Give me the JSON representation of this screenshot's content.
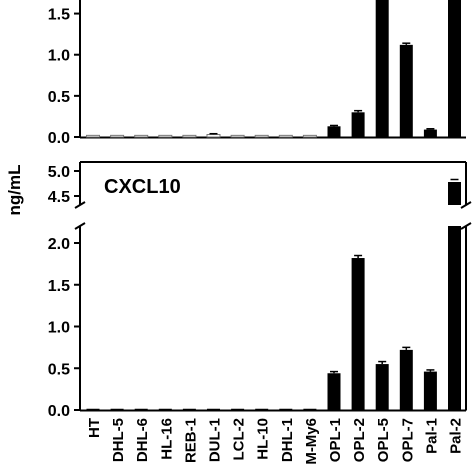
{
  "chart_data": [
    {
      "type": "bar",
      "ylabel": "ng/mL",
      "title": "",
      "categories": [
        "HT",
        "DHL-5",
        "DHL-6",
        "HL-16",
        "REB-1",
        "DUL-1",
        "LCL-2",
        "HL-10",
        "DHL-1",
        "M-My6",
        "OPL-1",
        "OPL-2",
        "OPL-5",
        "OPL-7",
        "Pal-1",
        "Pal-2"
      ],
      "values": [
        0.02,
        0.02,
        0.02,
        0.02,
        0.02,
        0.03,
        0.02,
        0.02,
        0.02,
        0.02,
        0.13,
        0.3,
        1.75,
        1.12,
        0.09,
        1.75
      ],
      "errors": [
        0.005,
        0.005,
        0.005,
        0.005,
        0.005,
        0.01,
        0.005,
        0.005,
        0.005,
        0.005,
        0.01,
        0.02,
        0.05,
        0.02,
        0.01,
        0.05
      ],
      "ylim": [
        0.0,
        1.75
      ],
      "yticks": [
        "0.0",
        "0.5",
        "1.0",
        "1.5"
      ],
      "hollow_bars": [
        "HT",
        "DHL-5",
        "DHL-6",
        "HL-16",
        "REB-1",
        "DUL-1",
        "LCL-2",
        "HL-10",
        "DHL-1",
        "M-My6"
      ]
    },
    {
      "type": "bar",
      "title": "CXCL10",
      "ylabel": "ng/mL",
      "categories": [
        "HT",
        "DHL-5",
        "DHL-6",
        "HL-16",
        "REB-1",
        "DUL-1",
        "LCL-2",
        "HL-10",
        "DHL-1",
        "M-My6",
        "OPL-1",
        "OPL-2",
        "OPL-5",
        "OPL-7",
        "Pal-1",
        "Pal-2"
      ],
      "values": [
        0.0,
        0.0,
        0.0,
        0.0,
        0.0,
        0.0,
        0.0,
        0.0,
        0.0,
        0.0,
        0.44,
        1.82,
        0.55,
        0.72,
        0.46,
        4.78
      ],
      "errors": [
        0.0,
        0.0,
        0.0,
        0.0,
        0.0,
        0.0,
        0.0,
        0.0,
        0.0,
        0.0,
        0.02,
        0.03,
        0.03,
        0.03,
        0.02,
        0.05
      ],
      "ylim": [
        0.0,
        5.0
      ],
      "axis_break": [
        2.2,
        4.5
      ],
      "yticks": [
        "0.0",
        "0.5",
        "1.0",
        "1.5",
        "2.0",
        "4.5",
        "5.0"
      ]
    }
  ],
  "colors": {
    "bar": "#000000",
    "axis": "#000000",
    "hollow_fill": "#ffffff"
  }
}
